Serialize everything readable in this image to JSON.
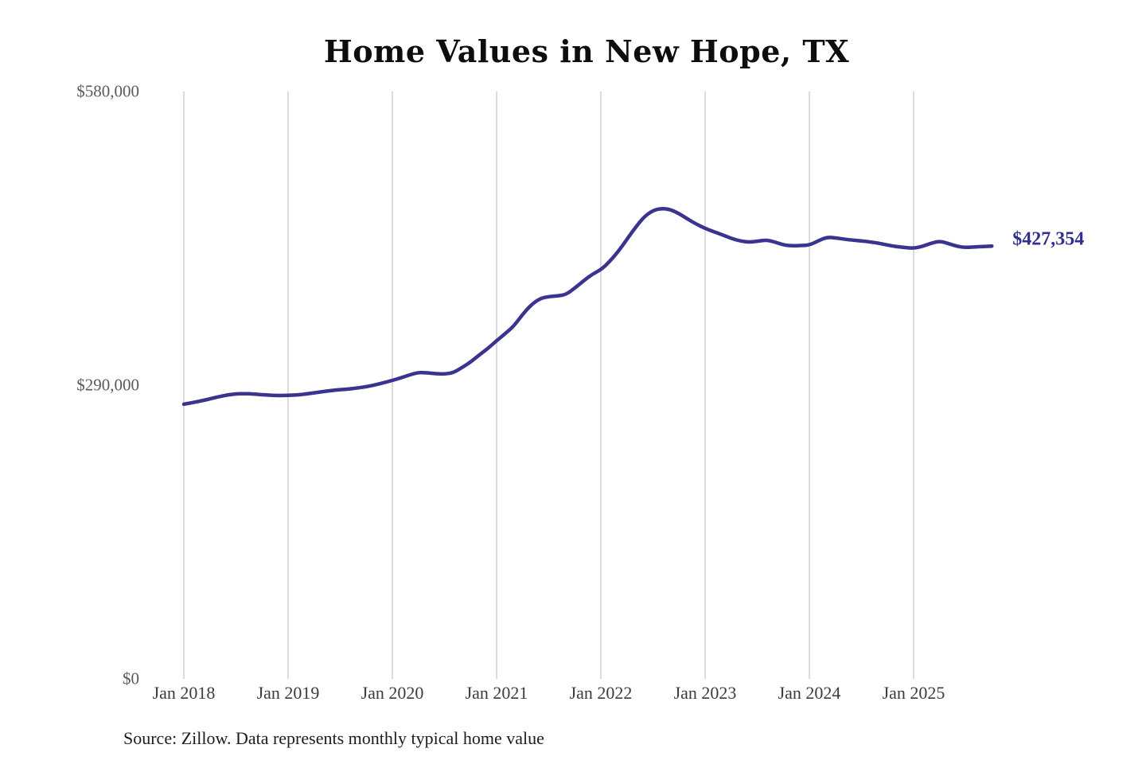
{
  "chart": {
    "title": "Home Values in New Hope, TX",
    "end_label": "$427,354",
    "source": "Source: Zillow. Data represents monthly typical home value",
    "colors": {
      "line": "#3a3390",
      "gridline": "#c8c8c8",
      "title": "#0d0d0d",
      "y_axis_label": "#5a5a5a",
      "x_axis_label": "#3c3c3c",
      "end_label": "#322e8e",
      "background": "#ffffff"
    }
  },
  "chart_data": {
    "type": "line",
    "title": "Home Values in New Hope, TX",
    "series_name": "Monthly typical home value (Zillow)",
    "x_interval": "monthly",
    "x": [
      "2018-01",
      "2018-02",
      "2018-03",
      "2018-04",
      "2018-05",
      "2018-06",
      "2018-07",
      "2018-08",
      "2018-09",
      "2018-10",
      "2018-11",
      "2018-12",
      "2019-01",
      "2019-02",
      "2019-03",
      "2019-04",
      "2019-05",
      "2019-06",
      "2019-07",
      "2019-08",
      "2019-09",
      "2019-10",
      "2019-11",
      "2019-12",
      "2020-01",
      "2020-02",
      "2020-03",
      "2020-04",
      "2020-05",
      "2020-06",
      "2020-07",
      "2020-08",
      "2020-09",
      "2020-10",
      "2020-11",
      "2020-12",
      "2021-01",
      "2021-02",
      "2021-03",
      "2021-04",
      "2021-05",
      "2021-06",
      "2021-07",
      "2021-08",
      "2021-09",
      "2021-10",
      "2021-11",
      "2021-12",
      "2022-01",
      "2022-02",
      "2022-03",
      "2022-04",
      "2022-05",
      "2022-06",
      "2022-07",
      "2022-08",
      "2022-09",
      "2022-10",
      "2022-11",
      "2022-12",
      "2023-01",
      "2023-02",
      "2023-03",
      "2023-04",
      "2023-05",
      "2023-06",
      "2023-07",
      "2023-08",
      "2023-09",
      "2023-10",
      "2023-11",
      "2023-12",
      "2024-01",
      "2024-02",
      "2024-03",
      "2024-04",
      "2024-05",
      "2024-06",
      "2024-07",
      "2024-08",
      "2024-09",
      "2024-10",
      "2024-11",
      "2024-12",
      "2025-01",
      "2025-02",
      "2025-03",
      "2025-04",
      "2025-05",
      "2025-06",
      "2025-07",
      "2025-08",
      "2025-09",
      "2025-10"
    ],
    "values": [
      271200,
      272800,
      274500,
      276500,
      278600,
      280400,
      281400,
      281700,
      281300,
      280600,
      280000,
      279800,
      279900,
      280400,
      281200,
      282400,
      283600,
      284800,
      285600,
      286300,
      287200,
      288500,
      290300,
      292400,
      294700,
      297300,
      300200,
      302600,
      302300,
      301300,
      301000,
      302200,
      307300,
      312800,
      319900,
      326200,
      334000,
      341000,
      348500,
      360000,
      369500,
      375700,
      377500,
      378100,
      379500,
      385900,
      393000,
      399500,
      404000,
      412000,
      422000,
      434000,
      446000,
      456500,
      462500,
      464700,
      463500,
      459500,
      454000,
      449000,
      444900,
      441500,
      438500,
      435000,
      432500,
      431200,
      432000,
      433400,
      431500,
      428500,
      427500,
      428000,
      428300,
      432500,
      436200,
      435500,
      434200,
      433200,
      432500,
      431500,
      430200,
      428400,
      426900,
      425900,
      425200,
      427000,
      430200,
      432300,
      430000,
      427000,
      426000,
      426500,
      427000,
      427354
    ],
    "end_value": 427354,
    "end_annotation": "$427,354",
    "ylim": [
      0,
      580000
    ],
    "y_ticks": [
      0,
      290000,
      580000
    ],
    "y_tick_labels": [
      "$0",
      "$290,000",
      "$580,000"
    ],
    "x_tick_labels": [
      "Jan 2018",
      "Jan 2019",
      "Jan 2020",
      "Jan 2021",
      "Jan 2022",
      "Jan 2023",
      "Jan 2024",
      "Jan 2025"
    ],
    "grid": "vertical-yearly",
    "legend": "none"
  }
}
